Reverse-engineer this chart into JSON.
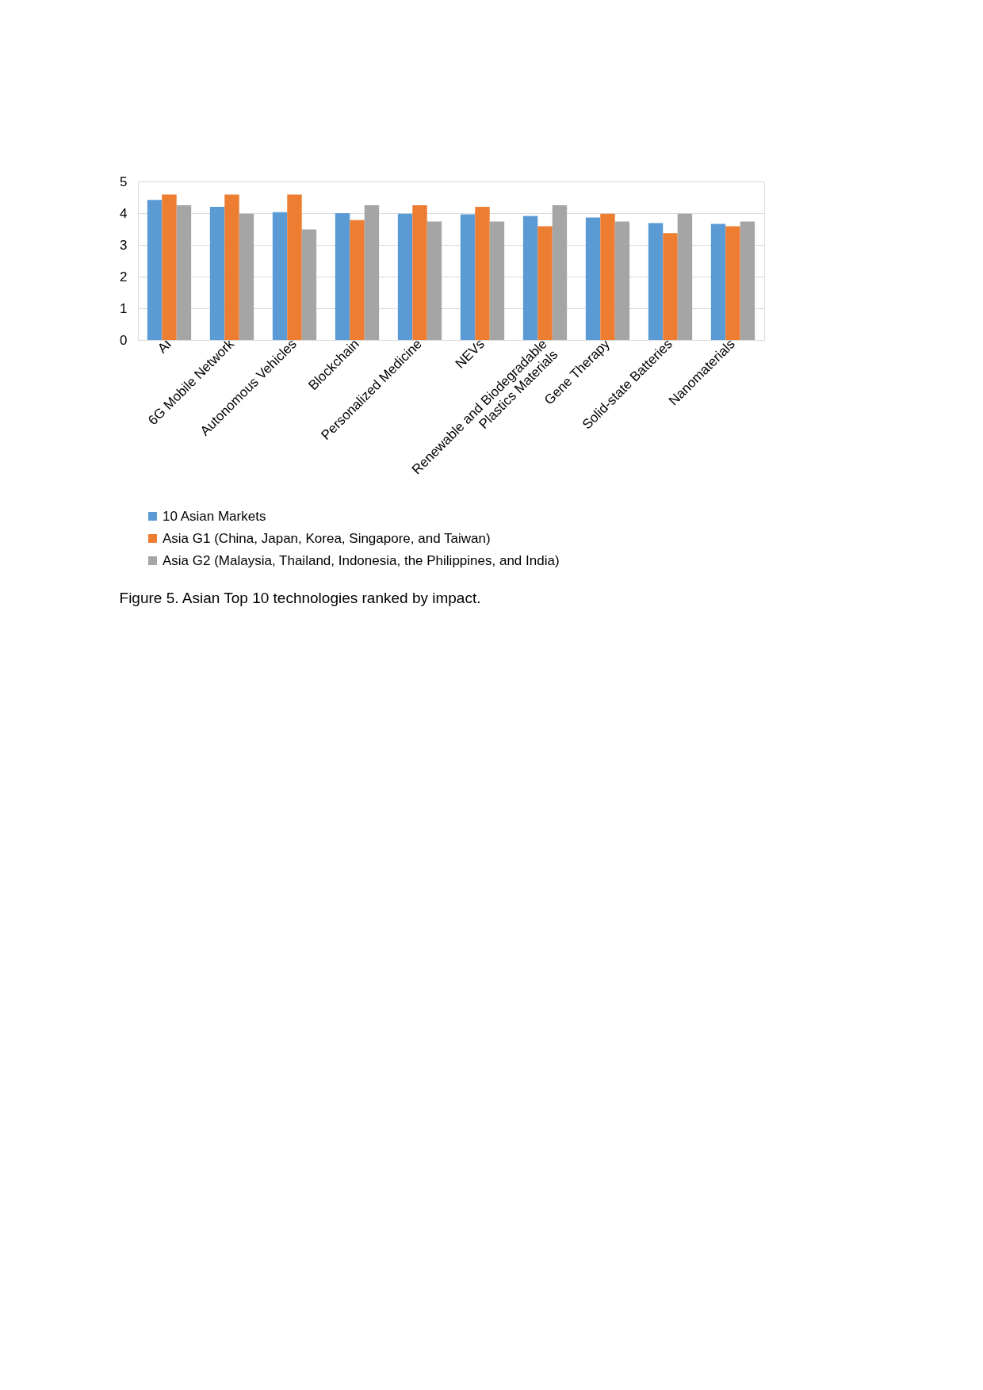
{
  "chart_data": {
    "type": "bar",
    "categories": [
      "AI",
      "6G Mobile Network",
      "Autonomous Vehicles",
      "Blockchain",
      "Personalized Medicine",
      "NEVs",
      "Renewable and Biodegradable\nPlastics Materials",
      "Gene Therapy",
      "Solid-state Batteries",
      "Nanomaterials"
    ],
    "series": [
      {
        "name": "10 Asian Markets",
        "color": "#5b9bd5",
        "values": [
          4.42,
          4.2,
          4.03,
          4.0,
          3.98,
          3.96,
          3.91,
          3.86,
          3.69,
          3.66
        ]
      },
      {
        "name": "Asia G1 (China, Japan, Korea, Singapore, and Taiwan)",
        "color": "#ed7d31",
        "values": [
          4.59,
          4.59,
          4.59,
          3.78,
          4.25,
          4.2,
          3.59,
          3.98,
          3.37,
          3.59
        ]
      },
      {
        "name": "Asia G2 (Malaysia, Thailand, Indonesia, the Philippines, and India)",
        "color": "#a5a5a5",
        "values": [
          4.25,
          3.98,
          3.49,
          4.25,
          3.74,
          3.74,
          4.25,
          3.74,
          3.98,
          3.74
        ]
      }
    ],
    "ylim": [
      0,
      5
    ],
    "yticks": [
      0,
      1,
      2,
      3,
      4,
      5
    ],
    "grid": "y",
    "legend": "bottom",
    "annotations": [
      "Figure 5. Asian Top 10 technologies ranked by impact."
    ]
  }
}
